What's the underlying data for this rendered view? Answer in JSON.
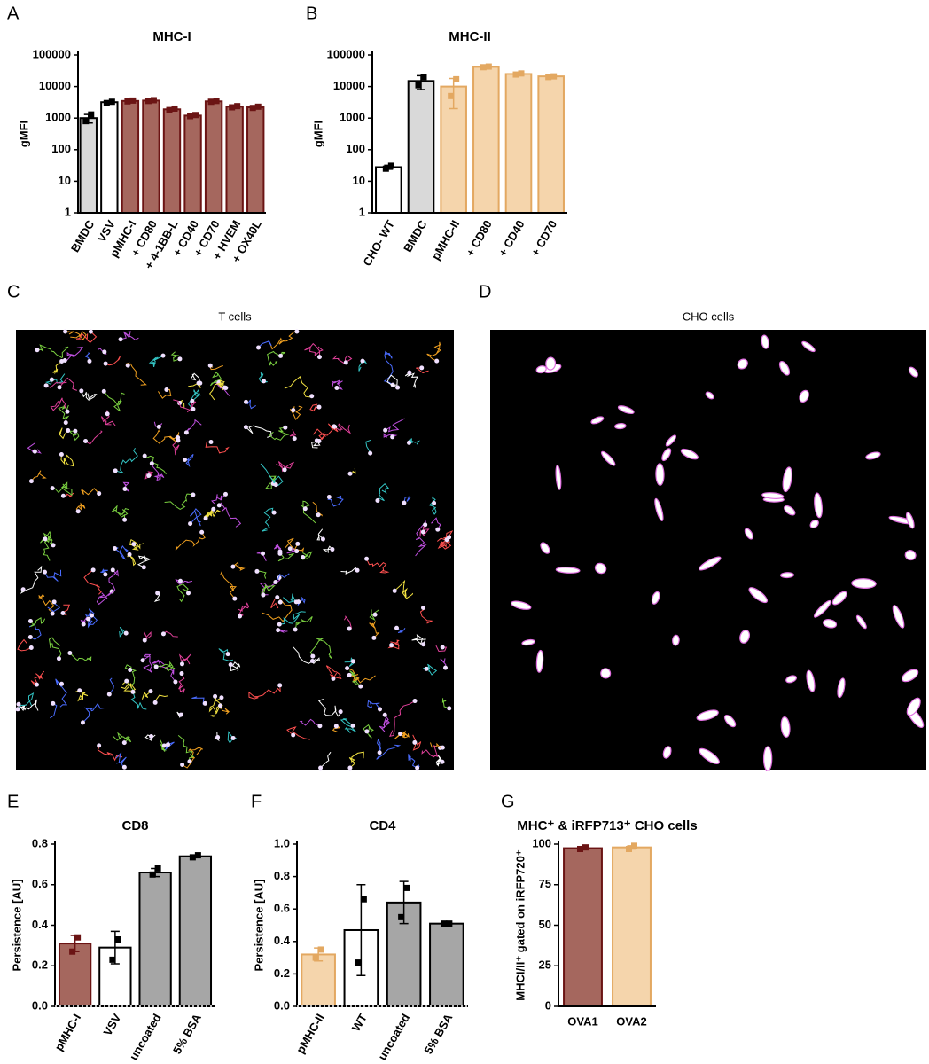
{
  "chart_data": [
    {
      "type": "bar",
      "panel": "A",
      "title": "MHC-I",
      "ylabel": "gMFI",
      "log": true,
      "categories": [
        "BMDC",
        "VSV",
        "pMHC-I",
        "+ CD80",
        "+ 4-1BB-L",
        "+ CD40",
        "+ CD70",
        "+ HVEM",
        "+ OX40L"
      ],
      "values": [
        1000,
        3200,
        3500,
        3600,
        1900,
        1200,
        3400,
        2300,
        2200
      ],
      "errors": [
        300,
        150,
        100,
        100,
        100,
        50,
        100,
        100,
        100
      ],
      "points": [
        [
          800,
          1300
        ],
        [
          3000,
          3300
        ],
        [
          3400,
          3600
        ],
        [
          3500,
          3700
        ],
        [
          1800,
          2000
        ],
        [
          1150,
          1250
        ],
        [
          3300,
          3500
        ],
        [
          2200,
          2400
        ],
        [
          2100,
          2300
        ]
      ],
      "colors": [
        "#d9d9d9",
        "#ffffff",
        "#a5675e",
        "#a5675e",
        "#a5675e",
        "#a5675e",
        "#a5675e",
        "#a5675e",
        "#a5675e"
      ],
      "edge_colors": [
        "#000000",
        "#000000",
        "#6b1414",
        "#6b1414",
        "#6b1414",
        "#6b1414",
        "#6b1414",
        "#6b1414",
        "#6b1414"
      ],
      "ylim": [
        1,
        100000
      ],
      "yticks": [
        1,
        10,
        100,
        1000,
        10000,
        100000
      ]
    },
    {
      "type": "bar",
      "panel": "B",
      "title": "MHC-II",
      "ylabel": "gMFI",
      "log": true,
      "categories": [
        "CHO- WT",
        "BMDC",
        "pMHC-II",
        "+ CD80",
        "+ CD40",
        "+ CD70"
      ],
      "values": [
        28,
        15000,
        10000,
        42000,
        25000,
        21000
      ],
      "errors": [
        4,
        7000,
        8000,
        2000,
        1000,
        800
      ],
      "points": [
        [
          25,
          31
        ],
        [
          11000,
          20000
        ],
        [
          5000,
          17000
        ],
        [
          41000,
          43000
        ],
        [
          24000,
          26000
        ],
        [
          20000,
          21000
        ]
      ],
      "colors": [
        "#ffffff",
        "#d9d9d9",
        "#f5d5ac",
        "#f5d5ac",
        "#f5d5ac",
        "#f5d5ac"
      ],
      "edge_colors": [
        "#000000",
        "#000000",
        "#e3a861",
        "#e3a861",
        "#e3a861",
        "#e3a861"
      ],
      "ylim": [
        1,
        100000
      ],
      "yticks": [
        1,
        10,
        100,
        1000,
        10000,
        100000
      ]
    },
    {
      "type": "bar",
      "panel": "E",
      "title": "CD8",
      "ylabel": "Persistence [AU]",
      "log": false,
      "categories": [
        "pMHC-I",
        "VSV",
        "uncoated",
        "5% BSA"
      ],
      "values": [
        0.31,
        0.29,
        0.66,
        0.74
      ],
      "errors": [
        0.04,
        0.08,
        0.02,
        0.005
      ],
      "points": [
        [
          0.27,
          0.34
        ],
        [
          0.23,
          0.33
        ],
        [
          0.65,
          0.68
        ],
        [
          0.735,
          0.745
        ]
      ],
      "colors": [
        "#a5675e",
        "#ffffff",
        "#a6a6a6",
        "#a6a6a6"
      ],
      "edge_colors": [
        "#6b1414",
        "#000000",
        "#000000",
        "#000000"
      ],
      "ylim": [
        0,
        0.8
      ],
      "yticks": [
        {
          "value": 0,
          "label": "0.0"
        },
        0.2,
        0.4,
        0.6,
        0.8
      ]
    },
    {
      "type": "bar",
      "panel": "F",
      "title": "CD4",
      "ylabel": "Persistence [AU]",
      "log": false,
      "categories": [
        "pMHC-II",
        "WT",
        "uncoated",
        "5% BSA"
      ],
      "values": [
        0.32,
        0.47,
        0.64,
        0.51
      ],
      "errors": [
        0.04,
        0.28,
        0.13,
        0.005
      ],
      "points": [
        [
          0.3,
          0.35
        ],
        [
          0.27,
          0.66
        ],
        [
          0.55,
          0.73
        ],
        [
          0.51,
          0.51
        ]
      ],
      "colors": [
        "#f5d5ac",
        "#ffffff",
        "#a6a6a6",
        "#a6a6a6"
      ],
      "edge_colors": [
        "#e3a861",
        "#000000",
        "#000000",
        "#000000"
      ],
      "ylim": [
        0,
        1
      ],
      "yticks": [
        {
          "value": 0,
          "label": "0.0"
        },
        0.2,
        0.4,
        0.6,
        0.8,
        {
          "value": 1,
          "label": "1.0"
        }
      ]
    },
    {
      "type": "bar",
      "panel": "G",
      "title": "MHC⁺ & iRFP713⁺ CHO cells",
      "ylabel": "MHCI/II⁺ gated on iRFP720⁺",
      "log": false,
      "categories": [
        "OVA1",
        "OVA2"
      ],
      "values": [
        97.5,
        98
      ],
      "errors": [
        0.5,
        1
      ],
      "points": [
        [
          97,
          98
        ],
        [
          97,
          99
        ]
      ],
      "colors": [
        "#a5675e",
        "#f5d5ac"
      ],
      "edge_colors": [
        "#6b1414",
        "#e3a861"
      ],
      "ylim": [
        0,
        100
      ],
      "yticks": [
        0,
        25,
        50,
        75,
        100
      ]
    }
  ],
  "images": [
    {
      "panel": "C",
      "title": "T cells"
    },
    {
      "panel": "D",
      "title": "CHO cells"
    }
  ]
}
